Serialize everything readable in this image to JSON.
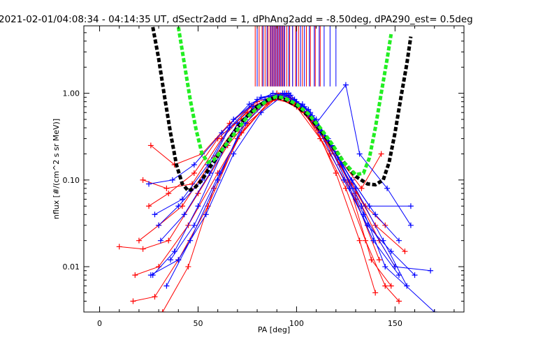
{
  "chart_data": {
    "type": "line",
    "title": "2021-02-01/04:08:34 - 04:14:35 UT, dSectr2add = 1, dPhAng2add = -8.50deg, dPA290_est=   0.5deg",
    "xlabel": "PA [deg]",
    "ylabel": "nflux [#/(cm^2 s sr MeV)]",
    "xlim": [
      -8,
      185
    ],
    "ylim": [
      0.003,
      6
    ],
    "yscale": "log",
    "grid": false,
    "xticks": [
      {
        "value": 0,
        "label": "0"
      },
      {
        "value": 50,
        "label": "50"
      },
      {
        "value": 100,
        "label": "100"
      },
      {
        "value": 150,
        "label": "150"
      }
    ],
    "yticks": [
      {
        "value": 0.01,
        "label": "0.01"
      },
      {
        "value": 0.1,
        "label": "0.10"
      },
      {
        "value": 1,
        "label": "1.00"
      }
    ],
    "series": [
      {
        "color": "#ff0000",
        "role": "pitch-angle distributions",
        "values": [
          [
            [
              17,
              0.004
            ],
            [
              28,
              0.0045
            ],
            [
              40,
              0.012
            ],
            [
              55,
              0.05
            ],
            [
              70,
              0.3
            ],
            [
              85,
              0.75
            ],
            [
              92,
              0.95
            ],
            [
              100,
              0.7
            ],
            [
              112,
              0.3
            ],
            [
              125,
              0.08
            ],
            [
              135,
              0.02
            ],
            [
              145,
              0.006
            ],
            [
              152,
              0.004
            ]
          ],
          [
            [
              20,
              0.02
            ],
            [
              30,
              0.03
            ],
            [
              42,
              0.05
            ],
            [
              58,
              0.18
            ],
            [
              72,
              0.5
            ],
            [
              88,
              0.9
            ],
            [
              95,
              1.0
            ],
            [
              105,
              0.6
            ],
            [
              118,
              0.22
            ],
            [
              130,
              0.07
            ],
            [
              142,
              0.02
            ],
            [
              150,
              0.01
            ]
          ],
          [
            [
              25,
              0.05
            ],
            [
              35,
              0.07
            ],
            [
              48,
              0.12
            ],
            [
              60,
              0.3
            ],
            [
              75,
              0.6
            ],
            [
              90,
              1.0
            ],
            [
              98,
              0.85
            ],
            [
              110,
              0.4
            ],
            [
              122,
              0.15
            ],
            [
              135,
              0.05
            ],
            [
              145,
              0.03
            ]
          ],
          [
            [
              10,
              0.017
            ],
            [
              22,
              0.016
            ],
            [
              35,
              0.02
            ],
            [
              50,
              0.07
            ],
            [
              65,
              0.25
            ],
            [
              80,
              0.65
            ],
            [
              90,
              0.9
            ],
            [
              102,
              0.65
            ],
            [
              115,
              0.28
            ],
            [
              128,
              0.09
            ],
            [
              140,
              0.03
            ],
            [
              155,
              0.015
            ]
          ],
          [
            [
              26,
              0.25
            ],
            [
              38,
              0.15
            ],
            [
              52,
              0.2
            ],
            [
              66,
              0.45
            ],
            [
              80,
              0.8
            ],
            [
              93,
              1.0
            ],
            [
              106,
              0.55
            ],
            [
              120,
              0.2
            ],
            [
              133,
              0.08
            ],
            [
              143,
              0.2
            ]
          ],
          [
            [
              18,
              0.008
            ],
            [
              30,
              0.01
            ],
            [
              45,
              0.03
            ],
            [
              60,
              0.12
            ],
            [
              75,
              0.45
            ],
            [
              89,
              0.85
            ],
            [
              100,
              0.75
            ],
            [
              113,
              0.35
            ],
            [
              126,
              0.1
            ],
            [
              138,
              0.012
            ],
            [
              148,
              0.006
            ]
          ],
          [
            [
              22,
              0.1
            ],
            [
              34,
              0.08
            ],
            [
              47,
              0.09
            ],
            [
              62,
              0.3
            ],
            [
              77,
              0.7
            ],
            [
              91,
              0.95
            ],
            [
              104,
              0.6
            ],
            [
              117,
              0.2
            ],
            [
              130,
              0.06
            ],
            [
              142,
              0.012
            ]
          ],
          [
            [
              32,
              0.003
            ],
            [
              45,
              0.01
            ],
            [
              58,
              0.08
            ],
            [
              72,
              0.35
            ],
            [
              86,
              0.8
            ],
            [
              96,
              0.9
            ],
            [
              108,
              0.5
            ],
            [
              120,
              0.12
            ],
            [
              132,
              0.02
            ],
            [
              140,
              0.005
            ]
          ]
        ]
      },
      {
        "color": "#0000ff",
        "role": "pitch-angle distributions",
        "values": [
          [
            [
              27,
              0.008
            ],
            [
              38,
              0.015
            ],
            [
              50,
              0.05
            ],
            [
              64,
              0.25
            ],
            [
              78,
              0.7
            ],
            [
              90,
              0.95
            ],
            [
              100,
              0.8
            ],
            [
              112,
              0.35
            ],
            [
              124,
              0.1
            ],
            [
              136,
              0.03
            ],
            [
              148,
              0.015
            ],
            [
              160,
              0.008
            ]
          ],
          [
            [
              30,
              0.03
            ],
            [
              40,
              0.05
            ],
            [
              52,
              0.1
            ],
            [
              66,
              0.4
            ],
            [
              80,
              0.85
            ],
            [
              93,
              1.0
            ],
            [
              104,
              0.7
            ],
            [
              116,
              0.3
            ],
            [
              128,
              0.1
            ],
            [
              140,
              0.04
            ],
            [
              152,
              0.02
            ]
          ],
          [
            [
              25,
              0.09
            ],
            [
              37,
              0.1
            ],
            [
              48,
              0.15
            ],
            [
              62,
              0.35
            ],
            [
              76,
              0.75
            ],
            [
              88,
              1.0
            ],
            [
              99,
              0.85
            ],
            [
              110,
              0.45
            ],
            [
              125,
              1.25
            ],
            [
              132,
              0.2
            ],
            [
              146,
              0.08
            ],
            [
              158,
              0.03
            ]
          ],
          [
            [
              34,
              0.006
            ],
            [
              46,
              0.02
            ],
            [
              60,
              0.1
            ],
            [
              74,
              0.5
            ],
            [
              87,
              0.9
            ],
            [
              97,
              0.95
            ],
            [
              108,
              0.55
            ],
            [
              120,
              0.2
            ],
            [
              133,
              0.05
            ],
            [
              145,
              0.01
            ],
            [
              170,
              0.003
            ]
          ],
          [
            [
              28,
              0.04
            ],
            [
              42,
              0.06
            ],
            [
              55,
              0.15
            ],
            [
              68,
              0.5
            ],
            [
              82,
              0.9
            ],
            [
              94,
              1.0
            ],
            [
              106,
              0.65
            ],
            [
              118,
              0.25
            ],
            [
              130,
              0.08
            ],
            [
              144,
              0.02
            ],
            [
              156,
              0.006
            ]
          ],
          [
            [
              36,
              0.012
            ],
            [
              48,
              0.03
            ],
            [
              61,
              0.12
            ],
            [
              74,
              0.45
            ],
            [
              86,
              0.85
            ],
            [
              95,
              0.95
            ],
            [
              107,
              0.6
            ],
            [
              121,
              0.18
            ],
            [
              134,
              0.04
            ],
            [
              150,
              0.01
            ],
            [
              168,
              0.009
            ]
          ],
          [
            [
              26,
              0.008
            ],
            [
              40,
              0.012
            ],
            [
              54,
              0.04
            ],
            [
              68,
              0.2
            ],
            [
              82,
              0.6
            ],
            [
              92,
              0.9
            ],
            [
              103,
              0.75
            ],
            [
              115,
              0.3
            ],
            [
              127,
              0.08
            ],
            [
              139,
              0.02
            ],
            [
              152,
              0.008
            ]
          ],
          [
            [
              31,
              0.02
            ],
            [
              43,
              0.04
            ],
            [
              56,
              0.12
            ],
            [
              70,
              0.45
            ],
            [
              84,
              0.85
            ],
            [
              96,
              1.0
            ],
            [
              110,
              0.5
            ],
            [
              123,
              0.15
            ],
            [
              137,
              0.05
            ],
            [
              158,
              0.05
            ]
          ]
        ]
      },
      {
        "color": "#000000",
        "role": "fit curve",
        "style": "dashed",
        "values": [
          [
            27,
            5.8
          ],
          [
            30,
            2.5
          ],
          [
            33,
            0.9
          ],
          [
            36,
            0.35
          ],
          [
            39,
            0.15
          ],
          [
            42,
            0.09
          ],
          [
            45,
            0.075
          ],
          [
            48,
            0.08
          ],
          [
            52,
            0.1
          ],
          [
            56,
            0.14
          ],
          [
            62,
            0.22
          ],
          [
            68,
            0.35
          ],
          [
            74,
            0.52
          ],
          [
            80,
            0.7
          ],
          [
            86,
            0.85
          ],
          [
            90,
            0.9
          ],
          [
            94,
            0.85
          ],
          [
            100,
            0.72
          ],
          [
            106,
            0.55
          ],
          [
            112,
            0.38
          ],
          [
            118,
            0.25
          ],
          [
            124,
            0.16
          ],
          [
            130,
            0.11
          ],
          [
            136,
            0.09
          ],
          [
            140,
            0.088
          ],
          [
            144,
            0.1
          ],
          [
            147,
            0.16
          ],
          [
            150,
            0.35
          ],
          [
            153,
            0.9
          ],
          [
            156,
            2.2
          ],
          [
            158,
            4.5
          ]
        ]
      },
      {
        "color": "#22ee22",
        "role": "fit curve",
        "style": "dashed",
        "values": [
          [
            40,
            5.8
          ],
          [
            43,
            2.2
          ],
          [
            46,
            0.85
          ],
          [
            49,
            0.38
          ],
          [
            52,
            0.2
          ],
          [
            55,
            0.16
          ],
          [
            58,
            0.17
          ],
          [
            62,
            0.22
          ],
          [
            68,
            0.33
          ],
          [
            74,
            0.5
          ],
          [
            80,
            0.68
          ],
          [
            86,
            0.85
          ],
          [
            90,
            0.92
          ],
          [
            94,
            0.88
          ],
          [
            100,
            0.75
          ],
          [
            106,
            0.58
          ],
          [
            112,
            0.4
          ],
          [
            118,
            0.26
          ],
          [
            124,
            0.16
          ],
          [
            130,
            0.115
          ],
          [
            134,
            0.12
          ],
          [
            137,
            0.18
          ],
          [
            140,
            0.4
          ],
          [
            143,
            1.0
          ],
          [
            146,
            2.5
          ],
          [
            148,
            4.8
          ]
        ]
      }
    ],
    "markers": {
      "type": "vertical-lines",
      "y_from": 1.2,
      "y_to": 6,
      "red": [
        79,
        81,
        82.5,
        84,
        85.5,
        86.5,
        87.5,
        88.5,
        89.5,
        90.5,
        91.5,
        92.5,
        93.5,
        95,
        96.5,
        98,
        99.5,
        101,
        103,
        105,
        107,
        109.5,
        112
      ],
      "blue": [
        80,
        83,
        85,
        87,
        88,
        89,
        90,
        91,
        92,
        93,
        94,
        96,
        98,
        100,
        102,
        104,
        106.5,
        109,
        111.5,
        114,
        117,
        120
      ]
    }
  }
}
